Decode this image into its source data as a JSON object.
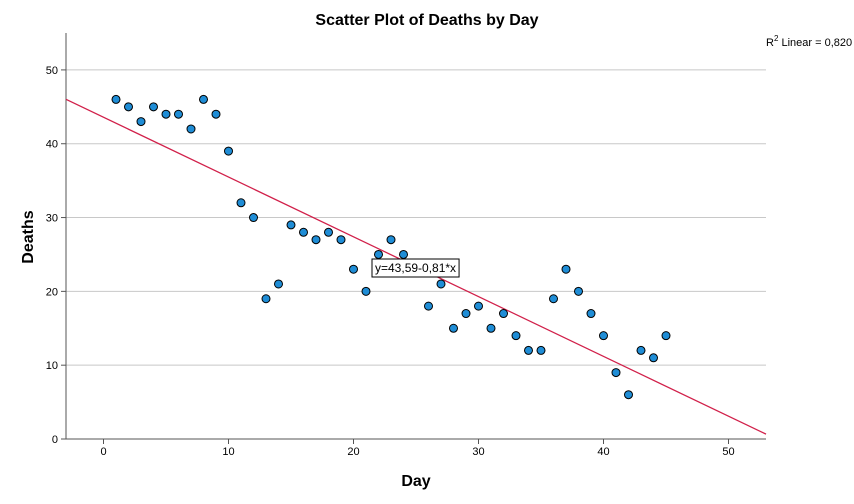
{
  "chart_data": {
    "type": "scatter",
    "title": "Scatter Plot of Deaths by Day",
    "xlabel": "Day",
    "ylabel": "Deaths",
    "xlim": [
      -3,
      53
    ],
    "ylim": [
      0,
      55
    ],
    "xticks": [
      0,
      10,
      20,
      30,
      40,
      50
    ],
    "yticks": [
      0,
      10,
      20,
      30,
      40,
      50
    ],
    "grid": "horizontal",
    "point_color": "#1f8dd6",
    "point_edge_color": "#000000",
    "line_color": "#d1204a",
    "points": [
      {
        "x": 1,
        "y": 46
      },
      {
        "x": 2,
        "y": 45
      },
      {
        "x": 3,
        "y": 43
      },
      {
        "x": 4,
        "y": 45
      },
      {
        "x": 5,
        "y": 44
      },
      {
        "x": 6,
        "y": 44
      },
      {
        "x": 7,
        "y": 42
      },
      {
        "x": 8,
        "y": 46
      },
      {
        "x": 9,
        "y": 44
      },
      {
        "x": 10,
        "y": 39
      },
      {
        "x": 11,
        "y": 32
      },
      {
        "x": 12,
        "y": 30
      },
      {
        "x": 13,
        "y": 19
      },
      {
        "x": 14,
        "y": 21
      },
      {
        "x": 15,
        "y": 29
      },
      {
        "x": 16,
        "y": 28
      },
      {
        "x": 17,
        "y": 27
      },
      {
        "x": 18,
        "y": 28
      },
      {
        "x": 19,
        "y": 27
      },
      {
        "x": 20,
        "y": 23
      },
      {
        "x": 21,
        "y": 20
      },
      {
        "x": 22,
        "y": 25
      },
      {
        "x": 23,
        "y": 27
      },
      {
        "x": 24,
        "y": 25
      },
      {
        "x": 25,
        "y": 23
      },
      {
        "x": 26,
        "y": 18
      },
      {
        "x": 27,
        "y": 21
      },
      {
        "x": 28,
        "y": 15
      },
      {
        "x": 29,
        "y": 17
      },
      {
        "x": 30,
        "y": 18
      },
      {
        "x": 31,
        "y": 15
      },
      {
        "x": 32,
        "y": 17
      },
      {
        "x": 33,
        "y": 14
      },
      {
        "x": 34,
        "y": 12
      },
      {
        "x": 35,
        "y": 12
      },
      {
        "x": 36,
        "y": 19
      },
      {
        "x": 37,
        "y": 23
      },
      {
        "x": 38,
        "y": 20
      },
      {
        "x": 39,
        "y": 17
      },
      {
        "x": 40,
        "y": 14
      },
      {
        "x": 41,
        "y": 9
      },
      {
        "x": 42,
        "y": 6
      },
      {
        "x": 43,
        "y": 12
      },
      {
        "x": 44,
        "y": 11
      },
      {
        "x": 45,
        "y": 14
      }
    ],
    "fit_line": {
      "intercept": 43.59,
      "slope": -0.81
    },
    "fit_equation_label": "y=43,59-0,81*x",
    "r2_prefix": "R",
    "r2_sup": "2",
    "r2_suffix": " Linear = 0,820"
  }
}
